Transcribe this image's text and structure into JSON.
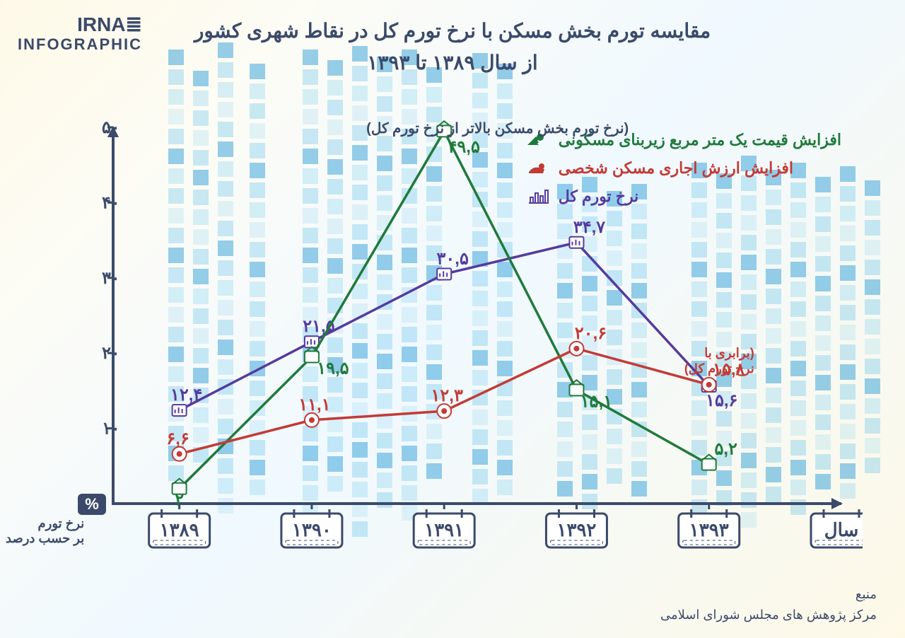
{
  "logo": {
    "line1": "≣IRNA",
    "sub": "INFOGRAPHIC"
  },
  "title_line1": "مقایسه تورم بخش مسکن با نرخ تورم کل در نقاط شهری کشور",
  "title_line2": "از سال ۱۳۸۹ تا ۱۳۹۳",
  "yaxis_title1": "نرخ تورم",
  "yaxis_title2": "بر حسب درصد",
  "yaxis_symbol": "%",
  "legend": {
    "series1": "افزایش قیمت یک متر مربع زیربنای مسکونی",
    "series2": "افزایش ارزش اجاری مسکن شخصی",
    "series3": "نرخ تورم کل"
  },
  "footer": {
    "label": "منبع",
    "text": "مرکز پژوهش های مجلس شورای اسلامی"
  },
  "chart": {
    "type": "line",
    "ylim": [
      0,
      50
    ],
    "yticks": [
      10,
      20,
      30,
      40,
      50
    ],
    "ytick_labels_persian": [
      "۱۰",
      "۲۰",
      "۳۰",
      "۴۰",
      "۵۰"
    ],
    "x_categories": [
      "۱۳۸۹",
      "۱۳۹۰",
      "۱۳۹۱",
      "۱۳۹۲",
      "۱۳۹۳"
    ],
    "x_extra_label": "سال",
    "colors": {
      "green": "#1f7a3a",
      "red": "#c43a36",
      "purple": "#553a9e",
      "axis": "#3b4a6b",
      "bg_pixel": "#5fc0e8"
    },
    "line_width": 3.5,
    "marker_size": 12,
    "series": {
      "green": {
        "values": [
          2,
          19.5,
          49.5,
          15.1,
          5.2
        ],
        "labels_persian": [
          "۲",
          "۱۹,۵",
          "۴۹,۵",
          "۱۵,۱",
          "۵,۲"
        ]
      },
      "red": {
        "values": [
          6.6,
          11.1,
          12.3,
          20.6,
          15.8
        ],
        "labels_persian": [
          "۶,۶",
          "۱۱,۱",
          "۱۲,۳",
          "۲۰,۶",
          "۱۵,۸"
        ]
      },
      "purple": {
        "values": [
          12.4,
          21.5,
          30.5,
          34.7,
          15.6
        ],
        "labels_persian": [
          "۱۲,۴",
          "۲۱,۵",
          "۳۰,۵",
          "۳۴,۷",
          "۱۵,۶"
        ]
      }
    },
    "annotations": {
      "center": "(نرخ تورم بخش مسکن بالاتر از نرخ تورم کل)",
      "right1": "(برابری با",
      "right2": "نرخ تورم کل)"
    }
  }
}
